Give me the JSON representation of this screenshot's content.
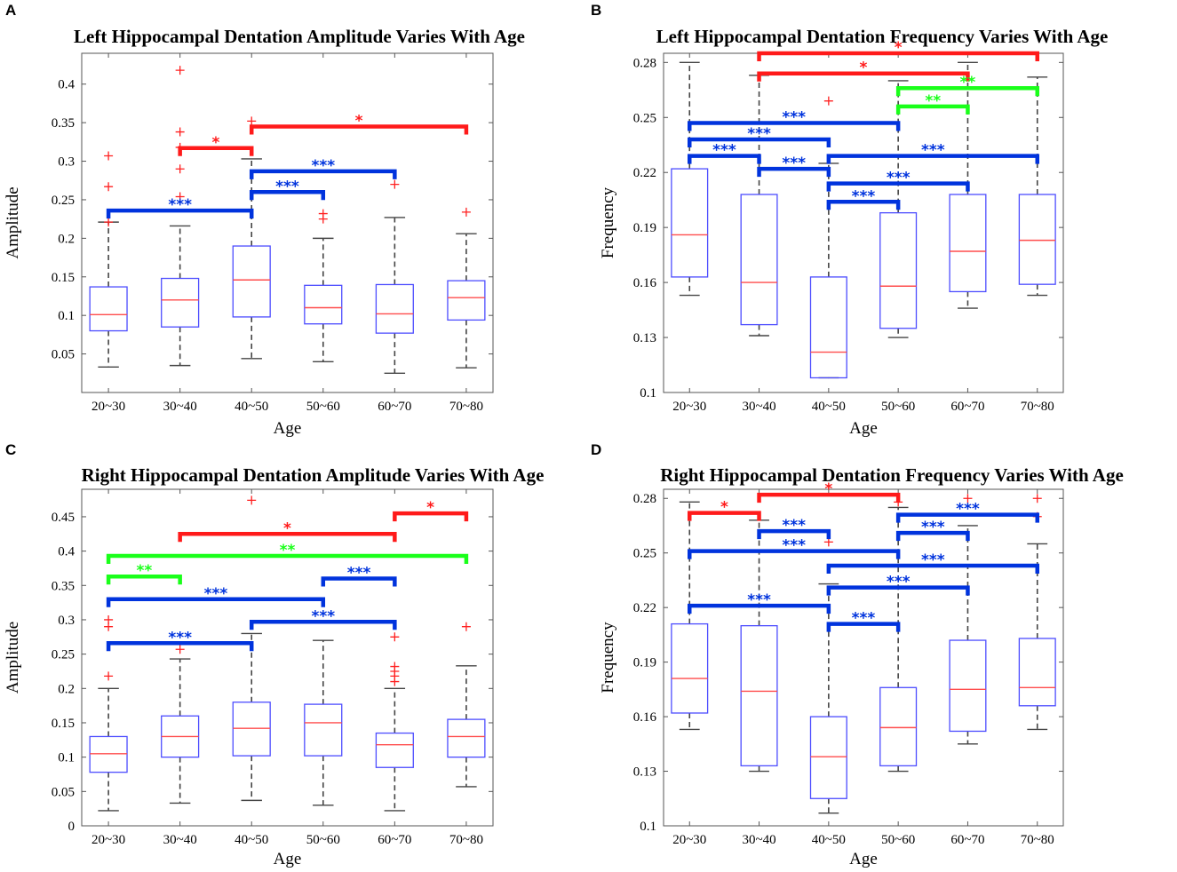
{
  "colors": {
    "box": "#4d4dff",
    "median": "#ff4d4d",
    "whisker": "#444444",
    "outlier": "#ff2020",
    "frame": "#555555",
    "sig_red": "#ff1a1a",
    "sig_green": "#1aff1a",
    "sig_blue": "#0033dd"
  },
  "chart_data": [
    {
      "type": "box",
      "panel": "A",
      "title": "Left Hippocampal Dentation Amplitude Varies With Age",
      "xlabel": "Age",
      "ylabel": "Amplitude",
      "ylim": [
        0,
        0.44
      ],
      "yticks": [
        0.05,
        0.1,
        0.15,
        0.2,
        0.25,
        0.3,
        0.35,
        0.4
      ],
      "ytick_labels": [
        "0.05",
        "0.1",
        "0.15",
        "0.2",
        "0.25",
        "0.3",
        "0.35",
        "0.4"
      ],
      "categories": [
        "20~30",
        "30~40",
        "40~50",
        "50~60",
        "60~70",
        "70~80"
      ],
      "boxes": [
        {
          "q1": 0.08,
          "median": 0.101,
          "q3": 0.137,
          "lo": 0.033,
          "hi": 0.221,
          "outliers": [
            0.307,
            0.267,
            0.221
          ]
        },
        {
          "q1": 0.085,
          "median": 0.12,
          "q3": 0.148,
          "lo": 0.035,
          "hi": 0.216,
          "outliers": [
            0.418,
            0.338,
            0.318,
            0.29,
            0.254
          ]
        },
        {
          "q1": 0.098,
          "median": 0.146,
          "q3": 0.19,
          "lo": 0.044,
          "hi": 0.303,
          "outliers": [
            0.352
          ]
        },
        {
          "q1": 0.089,
          "median": 0.11,
          "q3": 0.139,
          "lo": 0.04,
          "hi": 0.2,
          "outliers": [
            0.232,
            0.225
          ]
        },
        {
          "q1": 0.077,
          "median": 0.102,
          "q3": 0.14,
          "lo": 0.025,
          "hi": 0.227,
          "outliers": [
            0.27
          ]
        },
        {
          "q1": 0.094,
          "median": 0.123,
          "q3": 0.145,
          "lo": 0.032,
          "hi": 0.206,
          "outliers": [
            0.234
          ]
        }
      ],
      "sig": [
        {
          "from": 3,
          "to": 6,
          "y": 0.345,
          "label": "*",
          "color": "red"
        },
        {
          "from": 2,
          "to": 3,
          "y": 0.317,
          "label": "*",
          "color": "red"
        },
        {
          "from": 3,
          "to": 5,
          "y": 0.287,
          "label": "***",
          "color": "blue"
        },
        {
          "from": 3,
          "to": 4,
          "y": 0.26,
          "label": "***",
          "color": "blue"
        },
        {
          "from": 1,
          "to": 3,
          "y": 0.236,
          "label": "***",
          "color": "blue"
        }
      ]
    },
    {
      "type": "box",
      "panel": "B",
      "title": "Left Hippocampal Dentation Frequency Varies With Age",
      "xlabel": "Age",
      "ylabel": "Frequency",
      "ylim": [
        0.1,
        0.285
      ],
      "yticks": [
        0.1,
        0.13,
        0.16,
        0.19,
        0.22,
        0.25,
        0.28
      ],
      "ytick_labels": [
        "0.1",
        "0.13",
        "0.16",
        "0.19",
        "0.22",
        "0.25",
        "0.28"
      ],
      "categories": [
        "20~30",
        "30~40",
        "40~50",
        "50~60",
        "60~70",
        "70~80"
      ],
      "boxes": [
        {
          "q1": 0.163,
          "median": 0.186,
          "q3": 0.222,
          "lo": 0.153,
          "hi": 0.28,
          "outliers": []
        },
        {
          "q1": 0.137,
          "median": 0.16,
          "q3": 0.208,
          "lo": 0.131,
          "hi": 0.273,
          "outliers": []
        },
        {
          "q1": 0.108,
          "median": 0.122,
          "q3": 0.163,
          "lo": 0.108,
          "hi": 0.225,
          "outliers": [
            0.259
          ]
        },
        {
          "q1": 0.135,
          "median": 0.158,
          "q3": 0.198,
          "lo": 0.13,
          "hi": 0.27,
          "outliers": []
        },
        {
          "q1": 0.155,
          "median": 0.177,
          "q3": 0.208,
          "lo": 0.146,
          "hi": 0.28,
          "outliers": []
        },
        {
          "q1": 0.159,
          "median": 0.183,
          "q3": 0.208,
          "lo": 0.153,
          "hi": 0.272,
          "outliers": []
        }
      ],
      "sig": [
        {
          "from": 2,
          "to": 6,
          "y": 0.285,
          "label": "*",
          "color": "red"
        },
        {
          "from": 2,
          "to": 5,
          "y": 0.274,
          "label": "*",
          "color": "red"
        },
        {
          "from": 4,
          "to": 6,
          "y": 0.266,
          "label": "**",
          "color": "green"
        },
        {
          "from": 4,
          "to": 5,
          "y": 0.256,
          "label": "**",
          "color": "green"
        },
        {
          "from": 1,
          "to": 4,
          "y": 0.247,
          "label": "***",
          "color": "blue"
        },
        {
          "from": 1,
          "to": 3,
          "y": 0.238,
          "label": "***",
          "color": "blue"
        },
        {
          "from": 1,
          "to": 2,
          "y": 0.229,
          "label": "***",
          "color": "blue"
        },
        {
          "from": 3,
          "to": 6,
          "y": 0.229,
          "label": "***",
          "color": "blue"
        },
        {
          "from": 2,
          "to": 3,
          "y": 0.222,
          "label": "***",
          "color": "blue"
        },
        {
          "from": 3,
          "to": 5,
          "y": 0.214,
          "label": "***",
          "color": "blue"
        },
        {
          "from": 3,
          "to": 4,
          "y": 0.204,
          "label": "***",
          "color": "blue"
        }
      ]
    },
    {
      "type": "box",
      "panel": "C",
      "title": "Right Hippocampal Dentation Amplitude Varies With Age",
      "xlabel": "Age",
      "ylabel": "Amplitude",
      "ylim": [
        0,
        0.49
      ],
      "yticks": [
        0,
        0.05,
        0.1,
        0.15,
        0.2,
        0.25,
        0.3,
        0.35,
        0.4,
        0.45
      ],
      "ytick_labels": [
        "0",
        "0.05",
        "0.1",
        "0.15",
        "0.2",
        "0.25",
        "0.3",
        "0.35",
        "0.4",
        "0.45"
      ],
      "categories": [
        "20~30",
        "30~40",
        "40~50",
        "50~60",
        "60~70",
        "70~80"
      ],
      "boxes": [
        {
          "q1": 0.078,
          "median": 0.105,
          "q3": 0.13,
          "lo": 0.022,
          "hi": 0.2,
          "outliers": [
            0.3,
            0.29,
            0.218
          ]
        },
        {
          "q1": 0.1,
          "median": 0.13,
          "q3": 0.16,
          "lo": 0.033,
          "hi": 0.243,
          "outliers": [
            0.257
          ]
        },
        {
          "q1": 0.102,
          "median": 0.142,
          "q3": 0.18,
          "lo": 0.037,
          "hi": 0.28,
          "outliers": [
            0.474
          ]
        },
        {
          "q1": 0.102,
          "median": 0.15,
          "q3": 0.177,
          "lo": 0.03,
          "hi": 0.27,
          "outliers": []
        },
        {
          "q1": 0.085,
          "median": 0.118,
          "q3": 0.135,
          "lo": 0.022,
          "hi": 0.2,
          "outliers": [
            0.275,
            0.232,
            0.225,
            0.218,
            0.21
          ]
        },
        {
          "q1": 0.1,
          "median": 0.13,
          "q3": 0.155,
          "lo": 0.057,
          "hi": 0.233,
          "outliers": [
            0.29
          ]
        }
      ],
      "sig": [
        {
          "from": 5,
          "to": 6,
          "y": 0.455,
          "label": "*",
          "color": "red"
        },
        {
          "from": 2,
          "to": 5,
          "y": 0.425,
          "label": "*",
          "color": "red"
        },
        {
          "from": 1,
          "to": 6,
          "y": 0.393,
          "label": "**",
          "color": "green"
        },
        {
          "from": 1,
          "to": 2,
          "y": 0.363,
          "label": "**",
          "color": "green"
        },
        {
          "from": 4,
          "to": 5,
          "y": 0.36,
          "label": "***",
          "color": "blue"
        },
        {
          "from": 1,
          "to": 4,
          "y": 0.33,
          "label": "***",
          "color": "blue"
        },
        {
          "from": 3,
          "to": 5,
          "y": 0.297,
          "label": "***",
          "color": "blue"
        },
        {
          "from": 1,
          "to": 3,
          "y": 0.266,
          "label": "***",
          "color": "blue"
        }
      ]
    },
    {
      "type": "box",
      "panel": "D",
      "title": "Right Hippocampal Dentation Frequency Varies With Age",
      "xlabel": "Age",
      "ylabel": "Frequency",
      "ylim": [
        0.1,
        0.285
      ],
      "yticks": [
        0.1,
        0.13,
        0.16,
        0.19,
        0.22,
        0.25,
        0.28
      ],
      "ytick_labels": [
        "0.1",
        "0.13",
        "0.16",
        "0.19",
        "0.22",
        "0.25",
        "0.28"
      ],
      "categories": [
        "20~30",
        "30~40",
        "40~50",
        "50~60",
        "60~70",
        "70~80"
      ],
      "boxes": [
        {
          "q1": 0.162,
          "median": 0.181,
          "q3": 0.211,
          "lo": 0.153,
          "hi": 0.278,
          "outliers": []
        },
        {
          "q1": 0.133,
          "median": 0.174,
          "q3": 0.21,
          "lo": 0.13,
          "hi": 0.268,
          "outliers": []
        },
        {
          "q1": 0.115,
          "median": 0.138,
          "q3": 0.16,
          "lo": 0.107,
          "hi": 0.233,
          "outliers": [
            0.256
          ]
        },
        {
          "q1": 0.133,
          "median": 0.154,
          "q3": 0.176,
          "lo": 0.13,
          "hi": 0.275,
          "outliers": [
            0.278
          ]
        },
        {
          "q1": 0.152,
          "median": 0.175,
          "q3": 0.202,
          "lo": 0.145,
          "hi": 0.265,
          "outliers": [
            0.28
          ]
        },
        {
          "q1": 0.166,
          "median": 0.176,
          "q3": 0.203,
          "lo": 0.153,
          "hi": 0.255,
          "outliers": [
            0.28,
            0.27
          ]
        }
      ],
      "sig": [
        {
          "from": 2,
          "to": 4,
          "y": 0.282,
          "label": "*",
          "color": "red"
        },
        {
          "from": 1,
          "to": 2,
          "y": 0.272,
          "label": "*",
          "color": "red"
        },
        {
          "from": 4,
          "to": 6,
          "y": 0.271,
          "label": "***",
          "color": "blue"
        },
        {
          "from": 2,
          "to": 3,
          "y": 0.262,
          "label": "***",
          "color": "blue"
        },
        {
          "from": 4,
          "to": 5,
          "y": 0.261,
          "label": "***",
          "color": "blue"
        },
        {
          "from": 1,
          "to": 4,
          "y": 0.251,
          "label": "***",
          "color": "blue"
        },
        {
          "from": 3,
          "to": 6,
          "y": 0.243,
          "label": "***",
          "color": "blue"
        },
        {
          "from": 3,
          "to": 5,
          "y": 0.231,
          "label": "***",
          "color": "blue"
        },
        {
          "from": 1,
          "to": 3,
          "y": 0.221,
          "label": "***",
          "color": "blue"
        },
        {
          "from": 3,
          "to": 4,
          "y": 0.211,
          "label": "***",
          "color": "blue"
        }
      ]
    }
  ]
}
